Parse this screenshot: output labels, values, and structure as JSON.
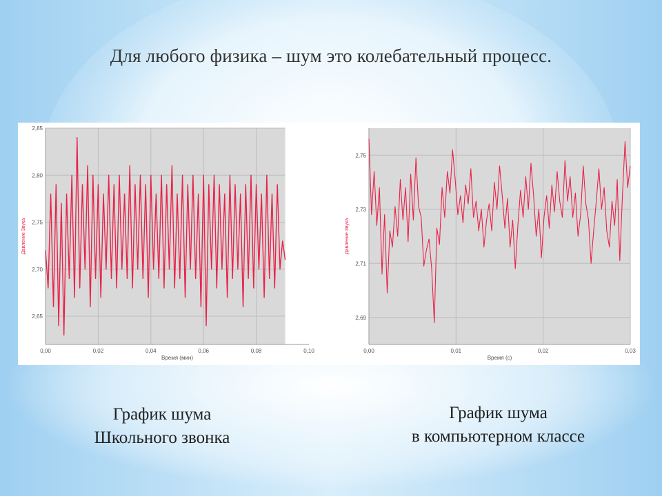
{
  "slide": {
    "title": "Для любого физика – шум это колебательный процесс.",
    "caption_left": [
      "График шума",
      "Школьного звонка"
    ],
    "caption_right": [
      "График шума",
      "в компьютерном классе"
    ]
  },
  "colors": {
    "signal": "#e8234a",
    "plot_bg": "#d9d9d9",
    "axis_label": "#e8234a"
  },
  "chart_data": [
    {
      "type": "line",
      "xlabel": "Время (мин)",
      "ylabel": "Давление Звука",
      "xlim": [
        0,
        0.1
      ],
      "ylim": [
        2.62,
        2.85
      ],
      "data_xmax": 0.091,
      "x_ticks": [
        0.0,
        0.02,
        0.04,
        0.06,
        0.08,
        0.1
      ],
      "x_tick_labels": [
        "0,00",
        "0,02",
        "0,04",
        "0,06",
        "0,08",
        "0,10"
      ],
      "y_ticks": [
        2.65,
        2.7,
        2.75,
        2.8,
        2.85
      ],
      "y_tick_labels": [
        "2,65",
        "2,70",
        "2,75",
        "2,80",
        "2,85"
      ],
      "grid": true,
      "series": [
        {
          "x": [
            0.0,
            0.001,
            0.002,
            0.003,
            0.004,
            0.005,
            0.006,
            0.007,
            0.008,
            0.009,
            0.01,
            0.011,
            0.012,
            0.013,
            0.014,
            0.015,
            0.016,
            0.017,
            0.018,
            0.019,
            0.02,
            0.021,
            0.022,
            0.023,
            0.024,
            0.025,
            0.026,
            0.027,
            0.028,
            0.029,
            0.03,
            0.031,
            0.032,
            0.033,
            0.034,
            0.035,
            0.036,
            0.037,
            0.038,
            0.039,
            0.04,
            0.041,
            0.042,
            0.043,
            0.044,
            0.045,
            0.046,
            0.047,
            0.048,
            0.049,
            0.05,
            0.051,
            0.052,
            0.053,
            0.054,
            0.055,
            0.056,
            0.057,
            0.058,
            0.059,
            0.06,
            0.061,
            0.062,
            0.063,
            0.064,
            0.065,
            0.066,
            0.067,
            0.068,
            0.069,
            0.07,
            0.071,
            0.072,
            0.073,
            0.074,
            0.075,
            0.076,
            0.077,
            0.078,
            0.079,
            0.08,
            0.081,
            0.082,
            0.083,
            0.084,
            0.085,
            0.086,
            0.087,
            0.088,
            0.089,
            0.09,
            0.091
          ],
          "y": [
            2.72,
            2.68,
            2.78,
            2.66,
            2.79,
            2.64,
            2.77,
            2.63,
            2.78,
            2.69,
            2.8,
            2.67,
            2.84,
            2.68,
            2.79,
            2.7,
            2.81,
            2.66,
            2.8,
            2.69,
            2.79,
            2.67,
            2.78,
            2.7,
            2.8,
            2.69,
            2.79,
            2.68,
            2.8,
            2.7,
            2.78,
            2.69,
            2.81,
            2.68,
            2.79,
            2.7,
            2.8,
            2.69,
            2.79,
            2.67,
            2.8,
            2.7,
            2.78,
            2.69,
            2.8,
            2.68,
            2.79,
            2.7,
            2.81,
            2.68,
            2.78,
            2.69,
            2.8,
            2.67,
            2.79,
            2.7,
            2.8,
            2.69,
            2.78,
            2.66,
            2.8,
            2.64,
            2.79,
            2.7,
            2.8,
            2.68,
            2.79,
            2.7,
            2.78,
            2.67,
            2.8,
            2.69,
            2.79,
            2.7,
            2.78,
            2.66,
            2.79,
            2.69,
            2.8,
            2.68,
            2.79,
            2.7,
            2.78,
            2.67,
            2.8,
            2.69,
            2.78,
            2.68,
            2.79,
            2.7,
            2.73,
            2.71
          ]
        }
      ]
    },
    {
      "type": "line",
      "xlabel": "Время (с)",
      "ylabel": "Давление Звука",
      "xlim": [
        0,
        0.03
      ],
      "ylim": [
        2.68,
        2.76
      ],
      "data_xmax": 0.03,
      "x_ticks": [
        0.0,
        0.01,
        0.02,
        0.03
      ],
      "x_tick_labels": [
        "0,00",
        "0,01",
        "0,02",
        "0,03"
      ],
      "y_ticks": [
        2.69,
        2.71,
        2.73,
        2.75
      ],
      "y_tick_labels": [
        "2,69",
        "2,71",
        "2,73",
        "2,75"
      ],
      "grid": true,
      "series": [
        {
          "x": [
            0.0,
            0.0003,
            0.0006,
            0.0009,
            0.0012,
            0.0015,
            0.0018,
            0.0021,
            0.0024,
            0.0027,
            0.003,
            0.0033,
            0.0036,
            0.0039,
            0.0042,
            0.0045,
            0.0048,
            0.0051,
            0.0054,
            0.0057,
            0.006,
            0.0063,
            0.0066,
            0.0069,
            0.0072,
            0.0075,
            0.0078,
            0.0081,
            0.0084,
            0.0087,
            0.009,
            0.0093,
            0.0096,
            0.0099,
            0.0102,
            0.0105,
            0.0108,
            0.0111,
            0.0114,
            0.0117,
            0.012,
            0.0123,
            0.0126,
            0.0129,
            0.0132,
            0.0135,
            0.0138,
            0.0141,
            0.0144,
            0.0147,
            0.015,
            0.0153,
            0.0156,
            0.0159,
            0.0162,
            0.0165,
            0.0168,
            0.0171,
            0.0174,
            0.0177,
            0.018,
            0.0183,
            0.0186,
            0.0189,
            0.0192,
            0.0195,
            0.0198,
            0.0201,
            0.0204,
            0.0207,
            0.021,
            0.0213,
            0.0216,
            0.0219,
            0.0222,
            0.0225,
            0.0228,
            0.0231,
            0.0234,
            0.0237,
            0.024,
            0.0243,
            0.0246,
            0.0249,
            0.0252,
            0.0255,
            0.0258,
            0.0261,
            0.0264,
            0.0267,
            0.027,
            0.0273,
            0.0276,
            0.0279,
            0.0282,
            0.0285,
            0.0288,
            0.0291,
            0.0294,
            0.0297,
            0.03
          ],
          "y": [
            2.756,
            2.728,
            2.744,
            2.724,
            2.738,
            2.706,
            2.728,
            2.699,
            2.722,
            2.716,
            2.731,
            2.72,
            2.741,
            2.726,
            2.738,
            2.718,
            2.743,
            2.726,
            2.749,
            2.731,
            2.727,
            2.709,
            2.715,
            2.719,
            2.708,
            2.688,
            2.723,
            2.717,
            2.738,
            2.727,
            2.744,
            2.736,
            2.752,
            2.741,
            2.728,
            2.735,
            2.725,
            2.739,
            2.732,
            2.745,
            2.727,
            2.733,
            2.722,
            2.73,
            2.716,
            2.726,
            2.732,
            2.722,
            2.74,
            2.73,
            2.746,
            2.735,
            2.723,
            2.734,
            2.716,
            2.726,
            2.708,
            2.724,
            2.737,
            2.727,
            2.742,
            2.73,
            2.747,
            2.735,
            2.72,
            2.73,
            2.712,
            2.727,
            2.735,
            2.723,
            2.739,
            2.729,
            2.744,
            2.733,
            2.727,
            2.748,
            2.733,
            2.742,
            2.727,
            2.736,
            2.72,
            2.728,
            2.746,
            2.732,
            2.726,
            2.71,
            2.722,
            2.733,
            2.745,
            2.73,
            2.738,
            2.722,
            2.716,
            2.733,
            2.724,
            2.741,
            2.711,
            2.735,
            2.755,
            2.738,
            2.746
          ]
        }
      ]
    }
  ]
}
